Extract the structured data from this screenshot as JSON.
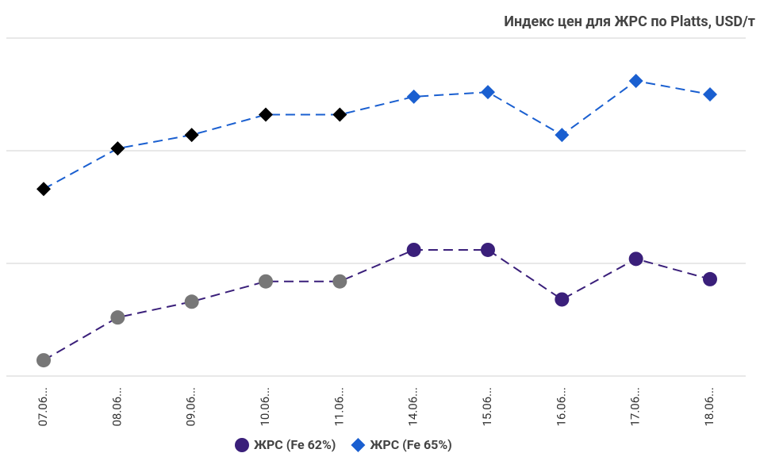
{
  "chart_data": {
    "type": "line",
    "title": "Индекс цен для ЖРС по Platts, USD/т",
    "categories": [
      "07.06...",
      "08.06...",
      "09.06...",
      "10.06...",
      "11.06...",
      "14.06...",
      "15.06...",
      "16.06...",
      "17.06...",
      "18.06..."
    ],
    "series": [
      {
        "name": "ЖРС (Fe 62%)",
        "color": "#3a1f7a",
        "marker": "circle",
        "marker_colors": [
          "#777777",
          "#777777",
          "#777777",
          "#777777",
          "#777777",
          "#3a1f7a",
          "#3a1f7a",
          "#3a1f7a",
          "#3a1f7a",
          "#3a1f7a"
        ],
        "values": [
          157,
          176,
          183,
          192,
          192,
          206,
          206,
          184,
          202,
          193
        ]
      },
      {
        "name": "ЖРС  (Fe 65%)",
        "color": "#1a5fd0",
        "marker": "diamond",
        "marker_colors": [
          "#000000",
          "#000000",
          "#000000",
          "#000000",
          "#000000",
          "#1a5fd0",
          "#1a5fd0",
          "#1a5fd0",
          "#1a5fd0",
          "#1a5fd0"
        ],
        "values": [
          233,
          251,
          257,
          266,
          266,
          274,
          276,
          257,
          281,
          275
        ]
      }
    ],
    "ylim": [
      150,
      300
    ],
    "yticks": [
      150,
      200,
      250,
      300
    ],
    "grid": true,
    "legend": "bottom"
  }
}
